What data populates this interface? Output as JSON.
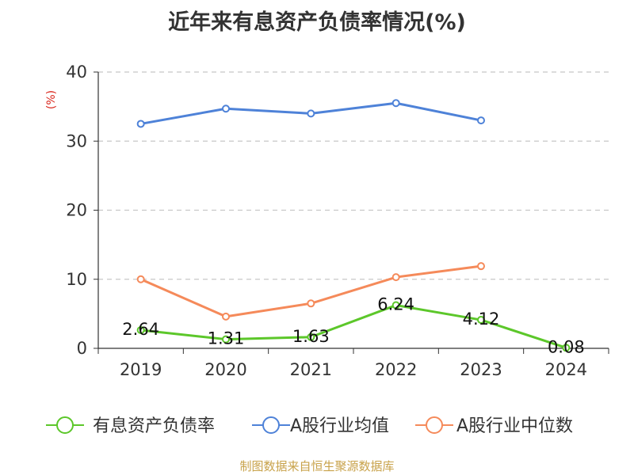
{
  "chart_data": {
    "type": "line",
    "title": "近年来有息资产负债率情况(%)",
    "ylabel": "(%)",
    "xlabel": "",
    "categories": [
      "2019",
      "2020",
      "2021",
      "2022",
      "2023",
      "2024"
    ],
    "ylim": [
      0,
      40
    ],
    "yticks": [
      0,
      10,
      20,
      30,
      40
    ],
    "grid": true,
    "legend_position": "bottom",
    "series": [
      {
        "name": "有息资产负债率",
        "color": "#5cc72a",
        "values": [
          2.64,
          1.31,
          1.63,
          6.24,
          4.12,
          0.08
        ],
        "labels": [
          "2.64",
          "1.31",
          "1.63",
          "6.24",
          "4.12",
          "0.08"
        ]
      },
      {
        "name": "A股行业均值",
        "color": "#4e82d8",
        "values": [
          32.5,
          34.7,
          34.0,
          35.5,
          33.0,
          null
        ]
      },
      {
        "name": "A股行业中位数",
        "color": "#f58a5a",
        "values": [
          10.0,
          4.6,
          6.5,
          10.3,
          11.9,
          null
        ]
      }
    ]
  },
  "source": "制图数据来自恒生聚源数据库"
}
